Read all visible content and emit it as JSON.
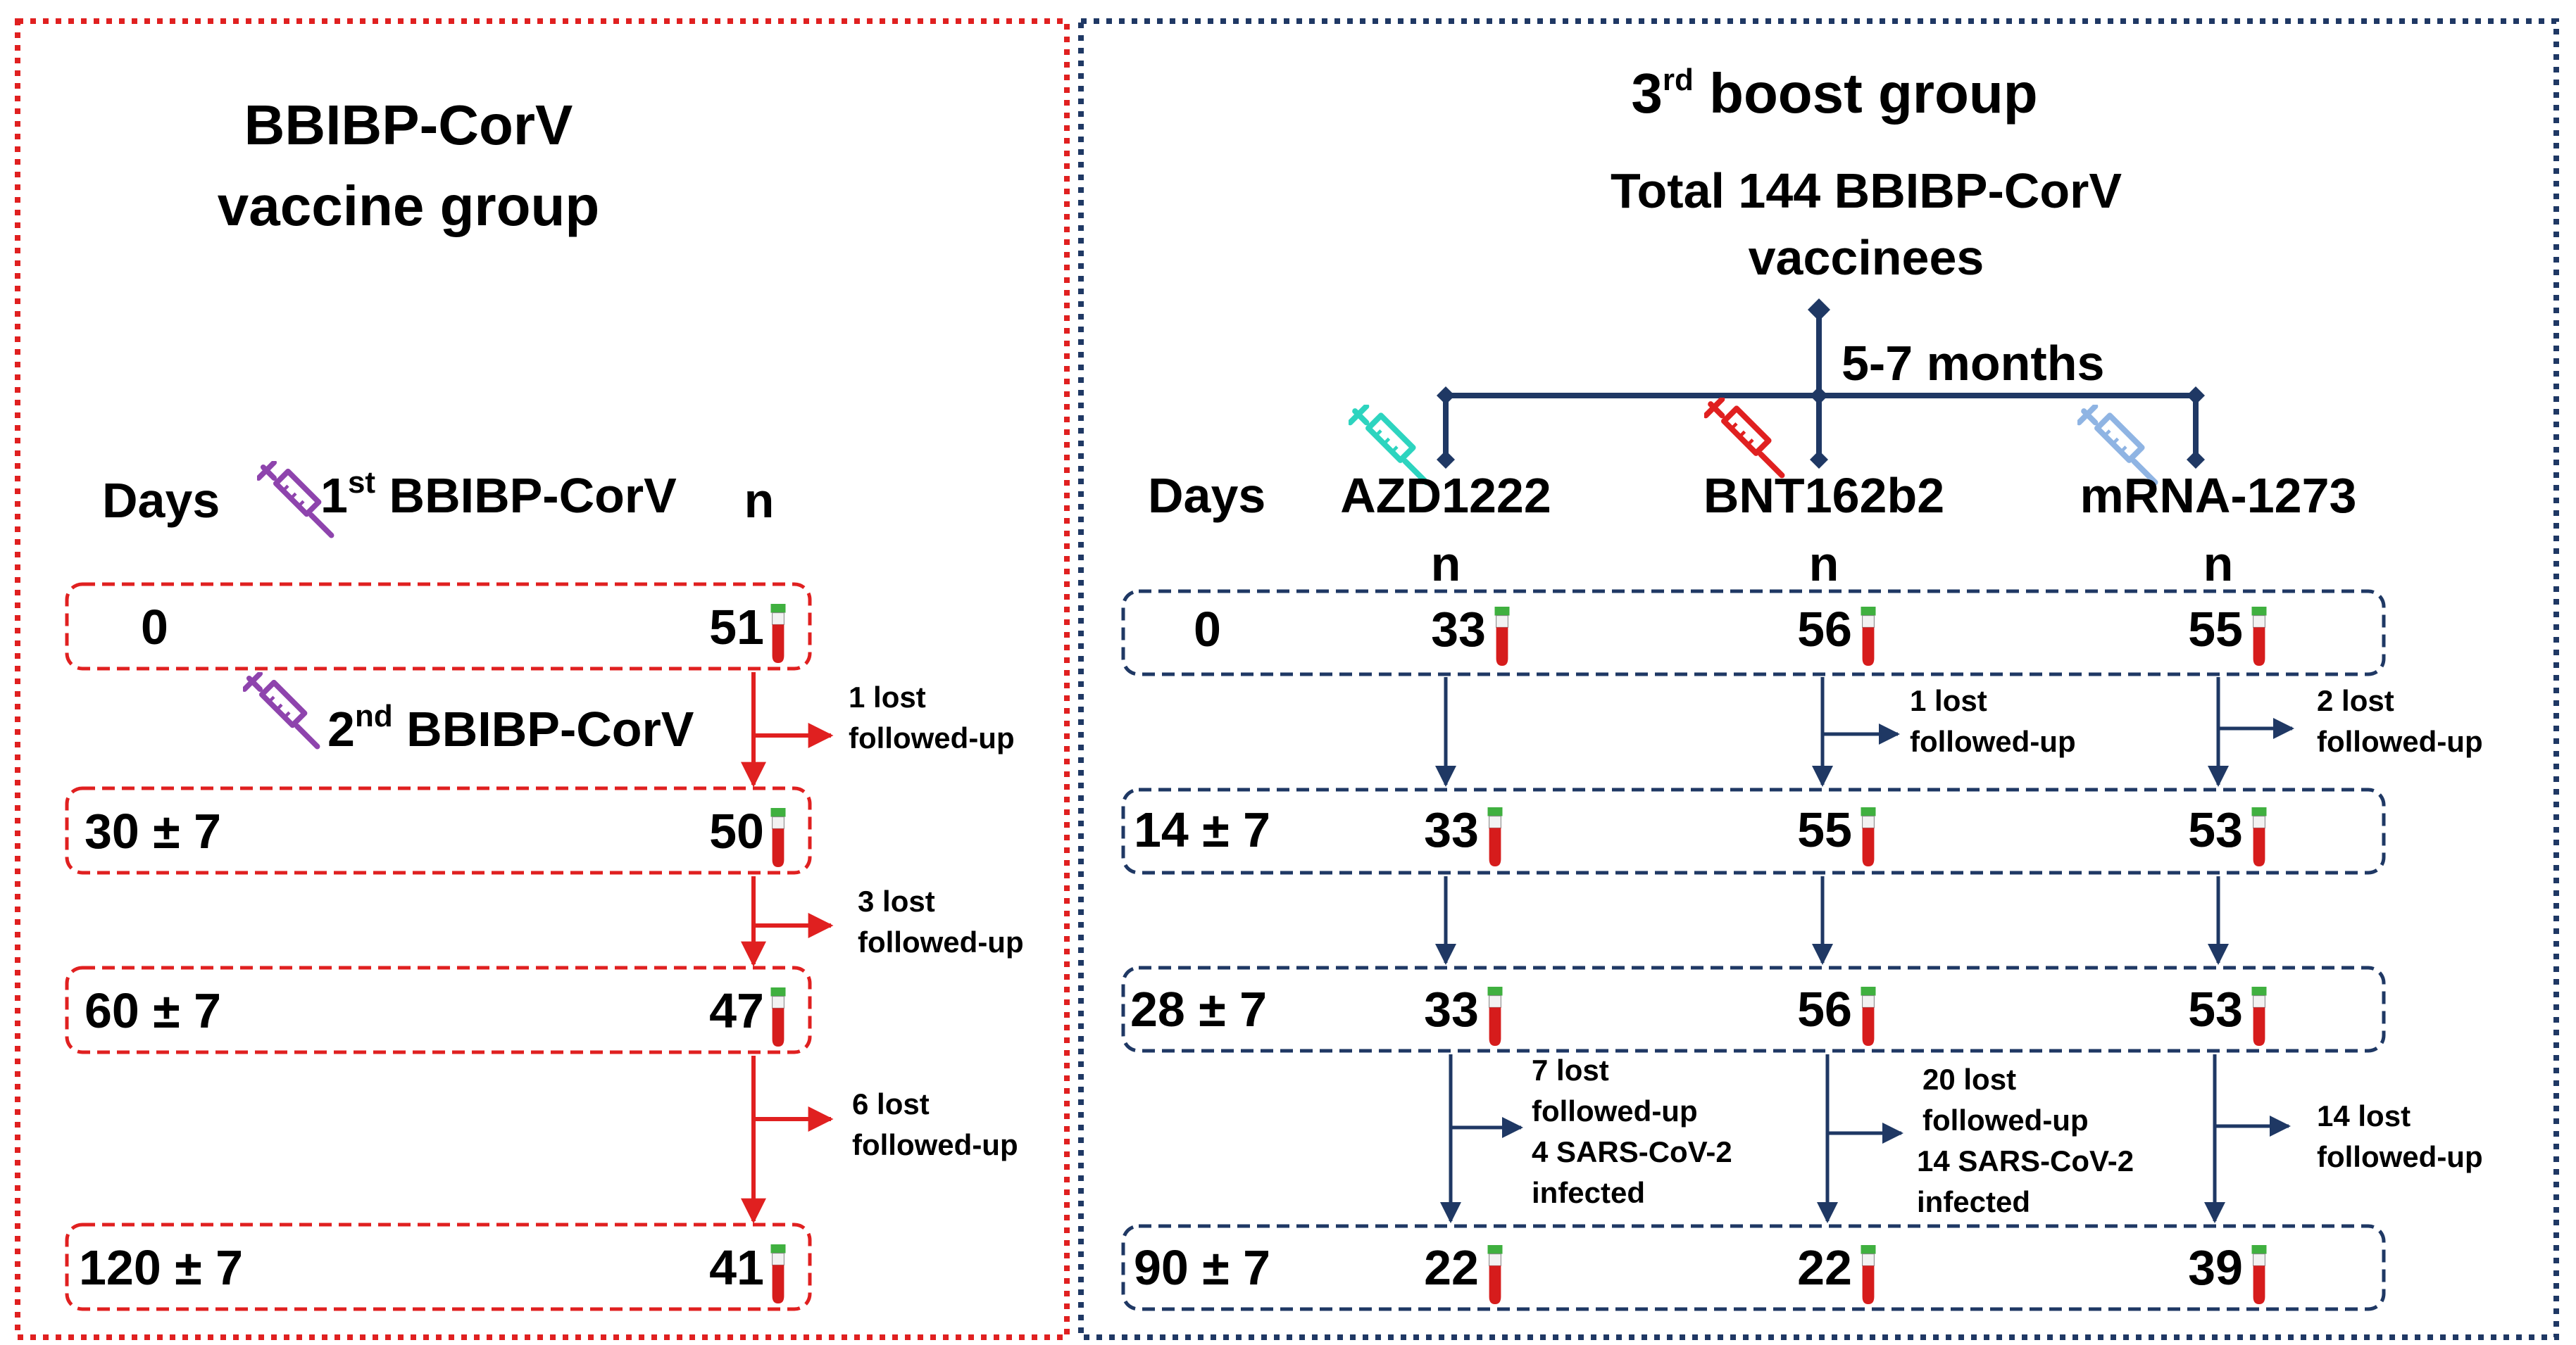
{
  "left_group": {
    "title_line1": "BBIBP-CorV",
    "title_line2": "vaccine group",
    "header": {
      "days": "Days",
      "dose1_prefix": "1",
      "dose1_sup": "st",
      "dose1_name": " BBIBP-CorV",
      "n": "n"
    },
    "dose2": {
      "prefix": "2",
      "sup": "nd",
      "name": " BBIBP-CorV"
    },
    "rows": [
      {
        "day": "0",
        "n": "51"
      },
      {
        "day": "30 ± 7",
        "n": "50"
      },
      {
        "day": "60 ± 7",
        "n": "47"
      },
      {
        "day": "120 ± 7",
        "n": "41"
      }
    ],
    "losses": [
      {
        "line1": "1 lost",
        "line2": "followed-up"
      },
      {
        "line1": "3 lost",
        "line2": "followed-up"
      },
      {
        "line1": "6 lost",
        "line2": "followed-up"
      }
    ],
    "border_color": "#e02020"
  },
  "right_group": {
    "title_prefix": "3",
    "title_sup": "rd",
    "title_rest": " boost group",
    "total_line1": "Total 144 BBIBP-CorV",
    "total_line2": "vaccinees",
    "interval": "5-7 months",
    "header": {
      "days": "Days",
      "vaccines": [
        "AZD1222",
        "BNT162b2",
        "mRNA-1273"
      ],
      "n": "n"
    },
    "rows": [
      {
        "day": "0",
        "values": [
          "33",
          "56",
          "55"
        ]
      },
      {
        "day": "14 ± 7",
        "values": [
          "33",
          "55",
          "53"
        ]
      },
      {
        "day": "28 ± 7",
        "values": [
          "33",
          "56",
          "53"
        ]
      },
      {
        "day": "90 ± 7",
        "values": [
          "22",
          "22",
          "39"
        ]
      }
    ],
    "losses_row1": [
      null,
      {
        "line1": "1 lost",
        "line2": "followed-up"
      },
      {
        "line1": "2 lost",
        "line2": "followed-up"
      }
    ],
    "losses_row3": [
      {
        "line1": "7 lost",
        "line2": "followed-up",
        "line3": "4 SARS-CoV-2",
        "line4": "infected"
      },
      {
        "line1": "20 lost",
        "line2": "followed-up",
        "line3": "14 SARS-CoV-2",
        "line4": "infected"
      },
      {
        "line1": "14 lost",
        "line2": "followed-up"
      }
    ],
    "border_color": "#1f3864"
  },
  "icons": {
    "syringe_colors": {
      "dose": "#8e44ad",
      "azd": "#2dd4bf",
      "bnt": "#e02020",
      "mrna": "#8fb4e3"
    },
    "tube": "blood-tube-icon"
  }
}
